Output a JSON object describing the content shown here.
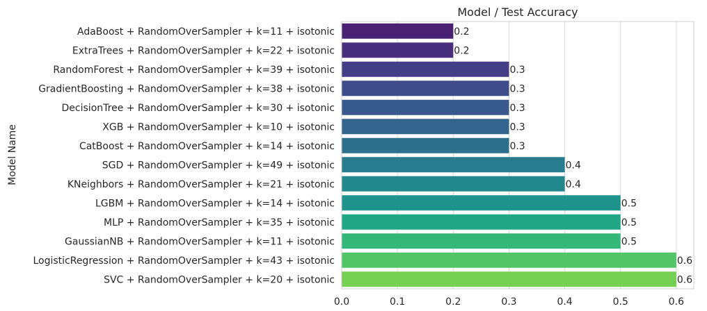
{
  "chart_data": {
    "type": "bar",
    "orientation": "horizontal",
    "title": "Model / Test Accuracy",
    "ylabel": "Model Name",
    "xlabel": "",
    "xlim": [
      0,
      0.62
    ],
    "xticks": [
      "0.0",
      "0.1",
      "0.2",
      "0.3",
      "0.4",
      "0.5",
      "0.6"
    ],
    "grid": true,
    "palette": "viridis",
    "categories": [
      "AdaBoost + RandomOverSampler + k=11 + isotonic",
      "ExtraTrees + RandomOverSampler + k=22 + isotonic",
      "RandomForest + RandomOverSampler + k=39 + isotonic",
      "GradientBoosting + RandomOverSampler + k=38 + isotonic",
      "DecisionTree + RandomOverSampler + k=30 + isotonic",
      "XGB + RandomOverSampler + k=10 + isotonic",
      "CatBoost + RandomOverSampler + k=14 + isotonic",
      "SGD + RandomOverSampler + k=49 + isotonic",
      "KNeighbors + RandomOverSampler + k=21 + isotonic",
      "LGBM + RandomOverSampler + k=14 + isotonic",
      "MLP + RandomOverSampler + k=35 + isotonic",
      "GaussianNB + RandomOverSampler + k=11 + isotonic",
      "LogisticRegression + RandomOverSampler + k=43 + isotonic",
      "SVC + RandomOverSampler + k=20 + isotonic"
    ],
    "values": [
      0.2,
      0.2,
      0.3,
      0.3,
      0.3,
      0.3,
      0.3,
      0.4,
      0.4,
      0.5,
      0.5,
      0.5,
      0.6,
      0.6
    ],
    "value_labels": [
      "0.2",
      "0.2",
      "0.3",
      "0.3",
      "0.3",
      "0.3",
      "0.3",
      "0.4",
      "0.4",
      "0.5",
      "0.5",
      "0.5",
      "0.6",
      "0.6"
    ],
    "colors": [
      "#482173",
      "#472f7d",
      "#433e85",
      "#3e4c8a",
      "#38598c",
      "#32648e",
      "#2d708e",
      "#287c8e",
      "#23888e",
      "#1f948c",
      "#22a785",
      "#35b779",
      "#52c569",
      "#75d054"
    ]
  },
  "chart_colors": {
    "grid": "#d9d9d9",
    "spine": "#cccccc",
    "text": "#262626"
  }
}
